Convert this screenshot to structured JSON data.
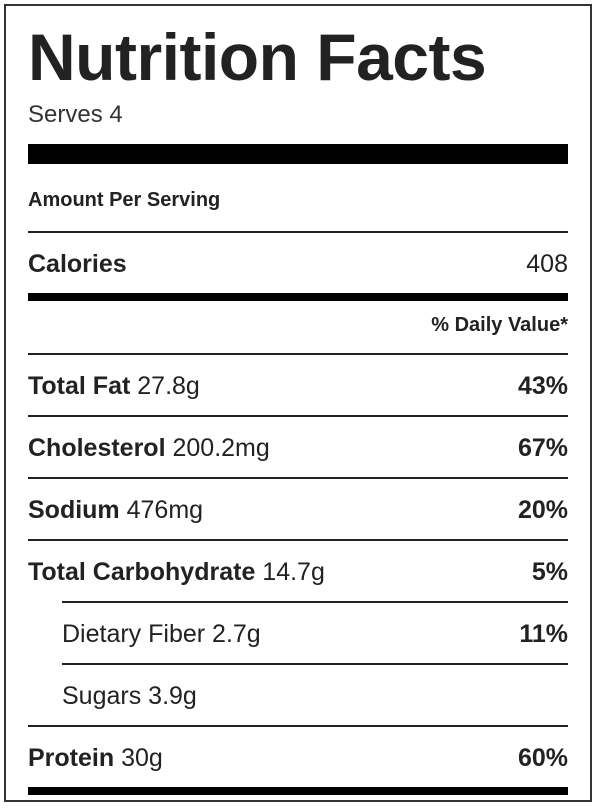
{
  "title": "Nutrition Facts",
  "serves": "Serves 4",
  "amount_per_serving": "Amount Per Serving",
  "calories": {
    "label": "Calories",
    "value": "408"
  },
  "daily_value_header": "% Daily Value*",
  "nutrients": [
    {
      "label": "Total Fat",
      "amount": "27.8g",
      "dv": "43%"
    },
    {
      "label": "Cholesterol",
      "amount": "200.2mg",
      "dv": "67%"
    },
    {
      "label": "Sodium",
      "amount": "476mg",
      "dv": "20%"
    },
    {
      "label": "Total Carbohydrate",
      "amount": "14.7g",
      "dv": "5%"
    },
    {
      "label": "Dietary Fiber",
      "amount": "2.7g",
      "dv": "11%"
    },
    {
      "label": "Sugars",
      "amount": "3.9g",
      "dv": ""
    },
    {
      "label": "Protein",
      "amount": "30g",
      "dv": "60%"
    }
  ]
}
